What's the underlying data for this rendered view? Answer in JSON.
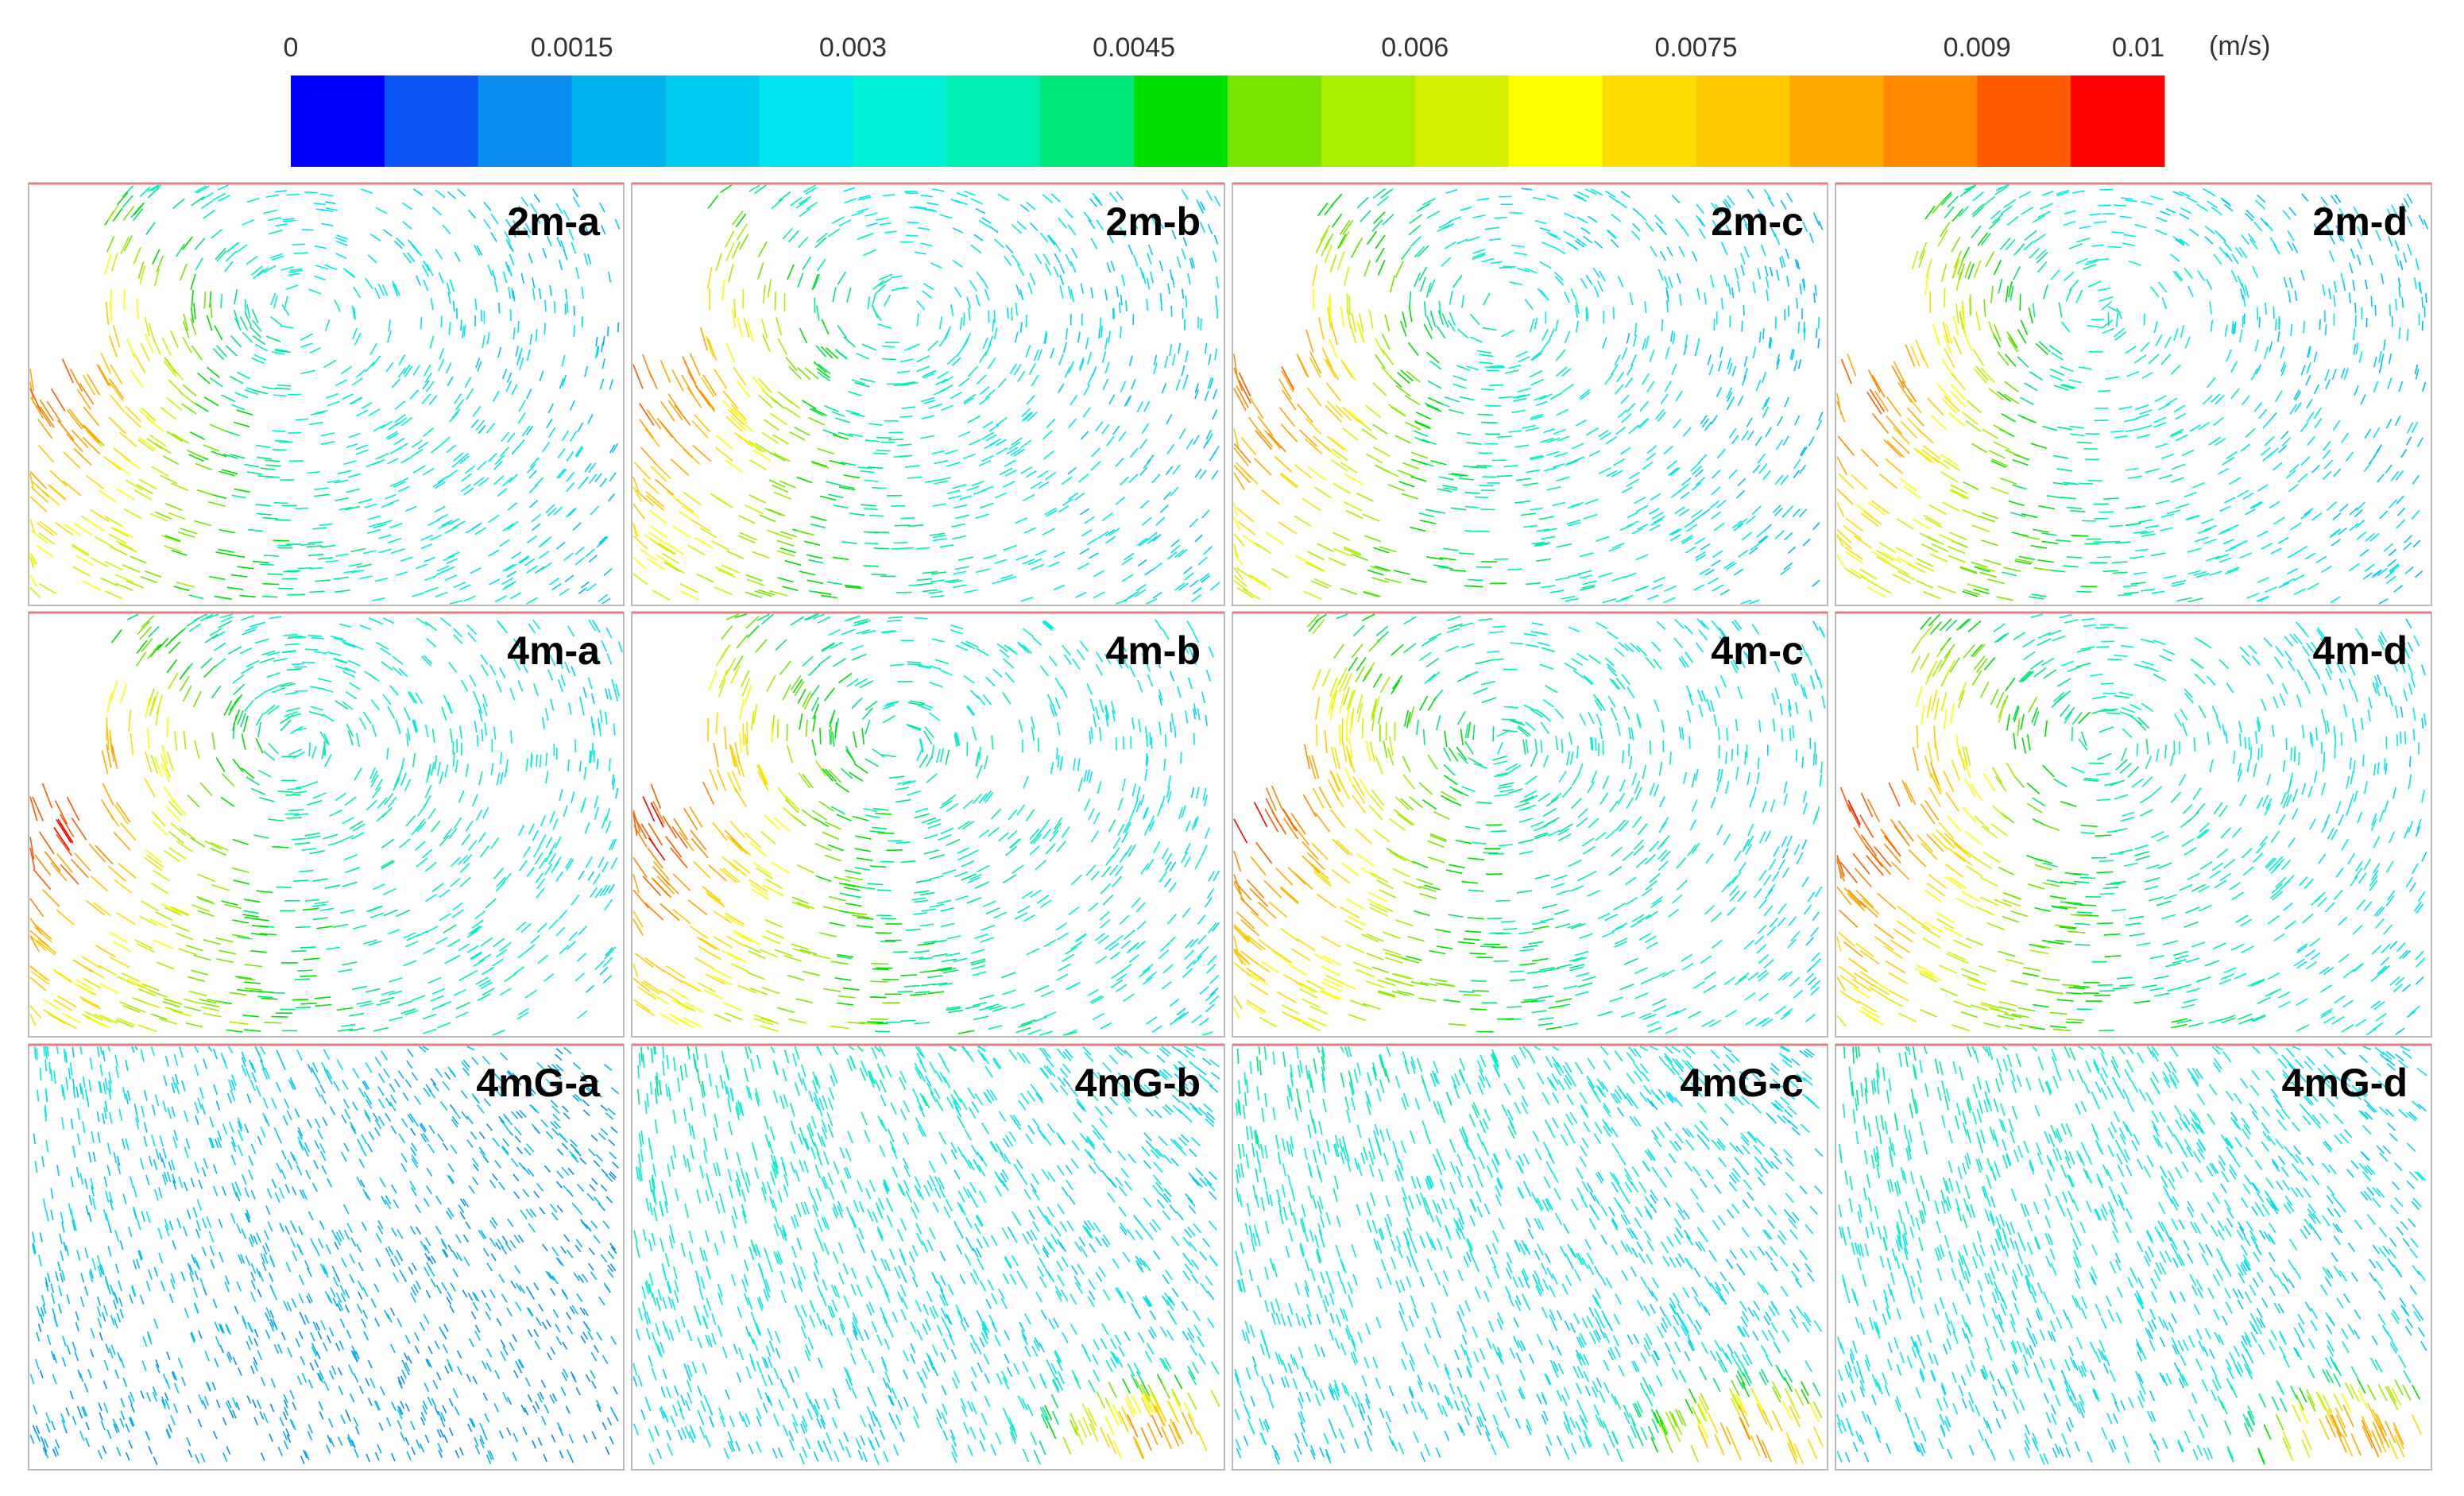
{
  "colorbar": {
    "ticks": [
      0,
      0.0015,
      0.003,
      0.0045,
      0.006,
      0.0075,
      0.009,
      0.01
    ],
    "unit": "(m/s)",
    "colors": [
      "#0000ff",
      "#0a55f5",
      "#0a8ef0",
      "#00b4f0",
      "#00cbf0",
      "#00e6f0",
      "#00f0d8",
      "#00f0b4",
      "#00e87c",
      "#00e000",
      "#78e600",
      "#a8ec00",
      "#d4f000",
      "#ffff00",
      "#ffdc00",
      "#ffc800",
      "#ffa800",
      "#ff8800",
      "#ff5a00",
      "#ff0000"
    ]
  },
  "panels": [
    {
      "label": "2m-a"
    },
    {
      "label": "2m-b"
    },
    {
      "label": "2m-c"
    },
    {
      "label": "2m-d"
    },
    {
      "label": "4m-a"
    },
    {
      "label": "4m-b"
    },
    {
      "label": "4m-c"
    },
    {
      "label": "4m-d"
    },
    {
      "label": "4mG-a"
    },
    {
      "label": "4mG-b"
    },
    {
      "label": "4mG-c"
    },
    {
      "label": "4mG-d"
    }
  ]
}
